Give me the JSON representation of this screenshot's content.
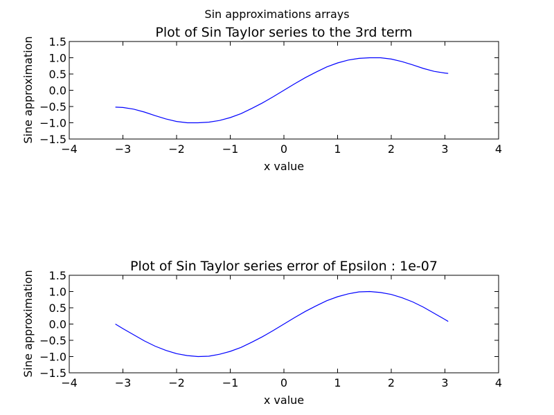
{
  "figure": {
    "suptitle": "Sin approximations arrays"
  },
  "chart_data": [
    {
      "type": "line",
      "title": "Plot of Sin Taylor series to the 3rd term",
      "xlabel": "x value",
      "ylabel": "Sine approximation",
      "xlim": [
        -4,
        4
      ],
      "ylim": [
        -1.5,
        1.5
      ],
      "xticks": [
        -4,
        -3,
        -2,
        -1,
        0,
        1,
        2,
        3,
        4
      ],
      "xtick_labels": [
        "−4",
        "−3",
        "−2",
        "−1",
        "0",
        "1",
        "2",
        "3",
        "4"
      ],
      "yticks": [
        -1.5,
        -1.0,
        -0.5,
        0.0,
        0.5,
        1.0,
        1.5
      ],
      "ytick_labels": [
        "−1.5",
        "−1.0",
        "−0.5",
        "0.0",
        "0.5",
        "1.0",
        "1.5"
      ],
      "grid": false,
      "series": [
        {
          "color": "#0000ff",
          "x": [
            -3.14,
            -3.0,
            -2.8,
            -2.6,
            -2.4,
            -2.2,
            -2.0,
            -1.8,
            -1.6,
            -1.4,
            -1.2,
            -1.0,
            -0.8,
            -0.6,
            -0.4,
            -0.2,
            0.0,
            0.2,
            0.4,
            0.6,
            0.8,
            1.0,
            1.2,
            1.4,
            1.6,
            1.8,
            2.0,
            2.2,
            2.4,
            2.6,
            2.8,
            3.0,
            3.06
          ],
          "y": [
            -0.52,
            -0.53,
            -0.58,
            -0.67,
            -0.78,
            -0.88,
            -0.96,
            -1.0,
            -1.0,
            -0.98,
            -0.93,
            -0.84,
            -0.72,
            -0.56,
            -0.39,
            -0.2,
            0.0,
            0.2,
            0.39,
            0.56,
            0.72,
            0.84,
            0.93,
            0.98,
            1.0,
            1.0,
            0.96,
            0.88,
            0.78,
            0.67,
            0.58,
            0.53,
            0.52
          ]
        }
      ]
    },
    {
      "type": "line",
      "title": "Plot of Sin Taylor series error of Epsilon : 1e-07",
      "xlabel": "x value",
      "ylabel": "Sine approximation",
      "xlim": [
        -4,
        4
      ],
      "ylim": [
        -1.5,
        1.5
      ],
      "xticks": [
        -4,
        -3,
        -2,
        -1,
        0,
        1,
        2,
        3,
        4
      ],
      "xtick_labels": [
        "−4",
        "−3",
        "−2",
        "−1",
        "0",
        "1",
        "2",
        "3",
        "4"
      ],
      "yticks": [
        -1.5,
        -1.0,
        -0.5,
        0.0,
        0.5,
        1.0,
        1.5
      ],
      "ytick_labels": [
        "−1.5",
        "−1.0",
        "−0.5",
        "0.0",
        "0.5",
        "1.0",
        "1.5"
      ],
      "grid": false,
      "series": [
        {
          "color": "#0000ff",
          "x": [
            -3.14,
            -3.0,
            -2.8,
            -2.6,
            -2.4,
            -2.2,
            -2.0,
            -1.8,
            -1.6,
            -1.4,
            -1.2,
            -1.0,
            -0.8,
            -0.6,
            -0.4,
            -0.2,
            0.0,
            0.2,
            0.4,
            0.6,
            0.8,
            1.0,
            1.2,
            1.4,
            1.6,
            1.8,
            2.0,
            2.2,
            2.4,
            2.6,
            2.8,
            3.0,
            3.06
          ],
          "y": [
            0.0,
            -0.14,
            -0.33,
            -0.52,
            -0.68,
            -0.81,
            -0.91,
            -0.97,
            -1.0,
            -0.99,
            -0.93,
            -0.84,
            -0.72,
            -0.56,
            -0.39,
            -0.2,
            0.0,
            0.2,
            0.39,
            0.56,
            0.72,
            0.84,
            0.93,
            0.99,
            1.0,
            0.97,
            0.91,
            0.81,
            0.68,
            0.52,
            0.33,
            0.14,
            0.08
          ]
        }
      ]
    }
  ]
}
